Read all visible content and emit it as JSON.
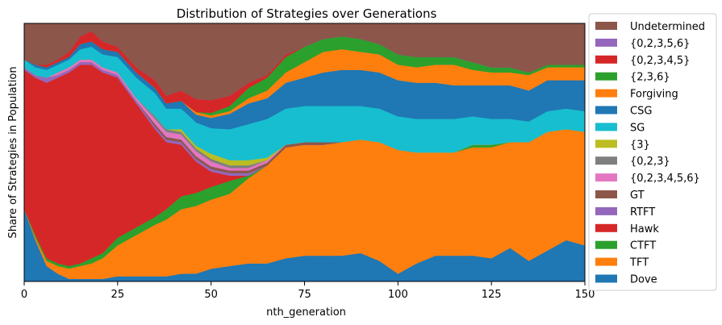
{
  "chart_data": {
    "type": "area",
    "stacked": true,
    "normalized": true,
    "title": "Distribution of Strategies over Generations",
    "xlabel": "nth_generation",
    "ylabel": "Share of Strategies in Population",
    "xlim": [
      0,
      150
    ],
    "ylim": [
      0,
      1
    ],
    "x_ticks": [
      0,
      25,
      50,
      75,
      100,
      125,
      150
    ],
    "grid": false,
    "legend_placement": "outside-right",
    "x_keyframes": [
      0,
      3,
      6,
      9,
      12,
      15,
      18,
      21,
      25,
      30,
      35,
      38,
      42,
      46,
      50,
      55,
      60,
      65,
      70,
      75,
      80,
      85,
      90,
      95,
      100,
      105,
      110,
      115,
      120,
      125,
      130,
      135,
      140,
      145,
      150
    ],
    "series": [
      {
        "name": "Dove",
        "color": "#1f77b4",
        "values": [
          0.28,
          0.16,
          0.06,
          0.03,
          0.01,
          0.01,
          0.01,
          0.01,
          0.02,
          0.02,
          0.02,
          0.02,
          0.03,
          0.03,
          0.05,
          0.06,
          0.07,
          0.07,
          0.09,
          0.1,
          0.1,
          0.1,
          0.11,
          0.08,
          0.03,
          0.07,
          0.1,
          0.1,
          0.1,
          0.09,
          0.13,
          0.08,
          0.12,
          0.16,
          0.14
        ]
      },
      {
        "name": "TFT",
        "color": "#ff7f0e",
        "values": [
          0.0,
          0.01,
          0.02,
          0.03,
          0.04,
          0.05,
          0.06,
          0.08,
          0.12,
          0.16,
          0.2,
          0.22,
          0.25,
          0.26,
          0.27,
          0.28,
          0.33,
          0.38,
          0.43,
          0.43,
          0.43,
          0.44,
          0.44,
          0.46,
          0.48,
          0.43,
          0.4,
          0.4,
          0.42,
          0.43,
          0.41,
          0.46,
          0.46,
          0.43,
          0.44
        ]
      },
      {
        "name": "CTFT",
        "color": "#2ca02c",
        "values": [
          0.0,
          0.01,
          0.01,
          0.01,
          0.01,
          0.01,
          0.02,
          0.02,
          0.03,
          0.03,
          0.03,
          0.04,
          0.05,
          0.05,
          0.05,
          0.05,
          0.01,
          0.0,
          0.0,
          0.0,
          0.0,
          0.0,
          0.0,
          0.0,
          0.0,
          0.0,
          0.0,
          0.0,
          0.01,
          0.01,
          0.0,
          0.0,
          0.0,
          0.0,
          0.0
        ]
      },
      {
        "name": "Hawk",
        "color": "#d62728",
        "values": [
          0.54,
          0.61,
          0.68,
          0.72,
          0.75,
          0.77,
          0.75,
          0.7,
          0.62,
          0.48,
          0.34,
          0.26,
          0.2,
          0.12,
          0.06,
          0.02,
          0.0,
          0.0,
          0.0,
          0.0,
          0.0,
          0.0,
          0.0,
          0.0,
          0.0,
          0.0,
          0.0,
          0.0,
          0.0,
          0.0,
          0.0,
          0.0,
          0.0,
          0.0,
          0.0
        ]
      },
      {
        "name": "RTFT",
        "color": "#9467bd",
        "values": [
          0.01,
          0.01,
          0.02,
          0.01,
          0.01,
          0.01,
          0.01,
          0.01,
          0.01,
          0.01,
          0.01,
          0.01,
          0.01,
          0.01,
          0.01,
          0.01,
          0.01,
          0.0,
          0.0,
          0.0,
          0.0,
          0.0,
          0.0,
          0.0,
          0.0,
          0.0,
          0.0,
          0.0,
          0.0,
          0.0,
          0.0,
          0.0,
          0.0,
          0.0,
          0.0
        ]
      },
      {
        "name": "GT",
        "color": "#8c564b",
        "values": [
          0.0,
          0.0,
          0.0,
          0.0,
          0.0,
          0.0,
          0.0,
          0.0,
          0.0,
          0.0,
          0.01,
          0.01,
          0.01,
          0.01,
          0.01,
          0.01,
          0.01,
          0.01,
          0.01,
          0.01,
          0.01,
          0.0,
          0.0,
          0.0,
          0.0,
          0.0,
          0.0,
          0.0,
          0.0,
          0.0,
          0.0,
          0.0,
          0.0,
          0.0,
          0.0
        ]
      },
      {
        "name": "{0,2,3,4,5,6}",
        "color": "#e377c2",
        "values": [
          0.0,
          0.0,
          0.0,
          0.01,
          0.01,
          0.01,
          0.01,
          0.01,
          0.01,
          0.01,
          0.02,
          0.02,
          0.02,
          0.02,
          0.02,
          0.01,
          0.01,
          0.01,
          0.0,
          0.0,
          0.0,
          0.0,
          0.0,
          0.0,
          0.0,
          0.0,
          0.0,
          0.0,
          0.0,
          0.0,
          0.0,
          0.0,
          0.0,
          0.0,
          0.0
        ]
      },
      {
        "name": "{0,2,3}",
        "color": "#7f7f7f",
        "values": [
          0.0,
          0.0,
          0.0,
          0.0,
          0.0,
          0.0,
          0.0,
          0.0,
          0.0,
          0.0,
          0.01,
          0.01,
          0.01,
          0.01,
          0.01,
          0.01,
          0.01,
          0.0,
          0.0,
          0.0,
          0.0,
          0.0,
          0.0,
          0.0,
          0.0,
          0.0,
          0.0,
          0.0,
          0.0,
          0.0,
          0.0,
          0.0,
          0.0,
          0.0,
          0.0
        ]
      },
      {
        "name": "{3}",
        "color": "#bcbd22",
        "values": [
          0.0,
          0.0,
          0.0,
          0.0,
          0.0,
          0.0,
          0.0,
          0.0,
          0.0,
          0.0,
          0.0,
          0.0,
          0.01,
          0.01,
          0.02,
          0.02,
          0.02,
          0.01,
          0.0,
          0.0,
          0.0,
          0.0,
          0.0,
          0.0,
          0.0,
          0.0,
          0.0,
          0.0,
          0.0,
          0.0,
          0.0,
          0.0,
          0.0,
          0.0,
          0.0
        ]
      },
      {
        "name": "SG",
        "color": "#17becf",
        "values": [
          0.03,
          0.03,
          0.03,
          0.03,
          0.03,
          0.04,
          0.05,
          0.05,
          0.06,
          0.08,
          0.09,
          0.08,
          0.08,
          0.09,
          0.1,
          0.12,
          0.14,
          0.15,
          0.14,
          0.14,
          0.14,
          0.14,
          0.13,
          0.13,
          0.13,
          0.13,
          0.13,
          0.13,
          0.11,
          0.1,
          0.09,
          0.08,
          0.08,
          0.08,
          0.08
        ]
      },
      {
        "name": "CSG",
        "color": "#1f77b4",
        "values": [
          0.0,
          0.01,
          0.01,
          0.01,
          0.01,
          0.02,
          0.02,
          0.02,
          0.02,
          0.02,
          0.02,
          0.02,
          0.03,
          0.03,
          0.04,
          0.06,
          0.08,
          0.08,
          0.1,
          0.11,
          0.13,
          0.14,
          0.14,
          0.14,
          0.14,
          0.14,
          0.14,
          0.13,
          0.12,
          0.13,
          0.13,
          0.12,
          0.12,
          0.11,
          0.12
        ]
      },
      {
        "name": "Forgiving",
        "color": "#ff7f0e",
        "values": [
          0.0,
          0.0,
          0.0,
          0.0,
          0.0,
          0.0,
          0.0,
          0.0,
          0.0,
          0.0,
          0.0,
          0.0,
          0.0,
          0.01,
          0.01,
          0.01,
          0.02,
          0.03,
          0.04,
          0.06,
          0.08,
          0.08,
          0.07,
          0.07,
          0.06,
          0.06,
          0.07,
          0.08,
          0.06,
          0.05,
          0.05,
          0.06,
          0.05,
          0.05,
          0.05
        ]
      },
      {
        "name": "{2,3,6}",
        "color": "#2ca02c",
        "values": [
          0.0,
          0.0,
          0.0,
          0.0,
          0.0,
          0.0,
          0.0,
          0.0,
          0.0,
          0.0,
          0.0,
          0.0,
          0.0,
          0.0,
          0.01,
          0.02,
          0.04,
          0.05,
          0.06,
          0.06,
          0.05,
          0.05,
          0.05,
          0.04,
          0.04,
          0.04,
          0.03,
          0.03,
          0.03,
          0.02,
          0.02,
          0.01,
          0.01,
          0.01,
          0.01
        ]
      },
      {
        "name": "{0,2,3,4,5}",
        "color": "#d62728",
        "values": [
          0.0,
          0.0,
          0.01,
          0.01,
          0.02,
          0.03,
          0.04,
          0.03,
          0.02,
          0.02,
          0.03,
          0.03,
          0.04,
          0.05,
          0.05,
          0.04,
          0.02,
          0.01,
          0.01,
          0.0,
          0.0,
          0.0,
          0.0,
          0.0,
          0.0,
          0.0,
          0.0,
          0.0,
          0.0,
          0.0,
          0.0,
          0.0,
          0.0,
          0.0,
          0.0
        ]
      },
      {
        "name": "{0,2,3,5,6}",
        "color": "#9467bd",
        "values": [
          0.0,
          0.0,
          0.0,
          0.0,
          0.0,
          0.0,
          0.0,
          0.0,
          0.0,
          0.0,
          0.0,
          0.0,
          0.0,
          0.0,
          0.0,
          0.0,
          0.0,
          0.0,
          0.0,
          0.0,
          0.0,
          0.0,
          0.0,
          0.0,
          0.0,
          0.0,
          0.0,
          0.0,
          0.0,
          0.0,
          0.0,
          0.0,
          0.0,
          0.0,
          0.0
        ]
      },
      {
        "name": "Undetermined",
        "color": "#8c564b",
        "values": [
          0.14,
          0.16,
          0.16,
          0.14,
          0.11,
          0.05,
          0.03,
          0.07,
          0.09,
          0.17,
          0.22,
          0.28,
          0.26,
          0.29,
          0.3,
          0.28,
          0.23,
          0.2,
          0.12,
          0.09,
          0.06,
          0.05,
          0.06,
          0.08,
          0.12,
          0.13,
          0.13,
          0.13,
          0.15,
          0.17,
          0.17,
          0.19,
          0.16,
          0.16,
          0.16
        ]
      }
    ],
    "legend_order": [
      "Undetermined",
      "{0,2,3,5,6}",
      "{0,2,3,4,5}",
      "{2,3,6}",
      "Forgiving",
      "CSG",
      "SG",
      "{3}",
      "{0,2,3}",
      "{0,2,3,4,5,6}",
      "GT",
      "RTFT",
      "Hawk",
      "CTFT",
      "TFT",
      "Dove"
    ]
  }
}
